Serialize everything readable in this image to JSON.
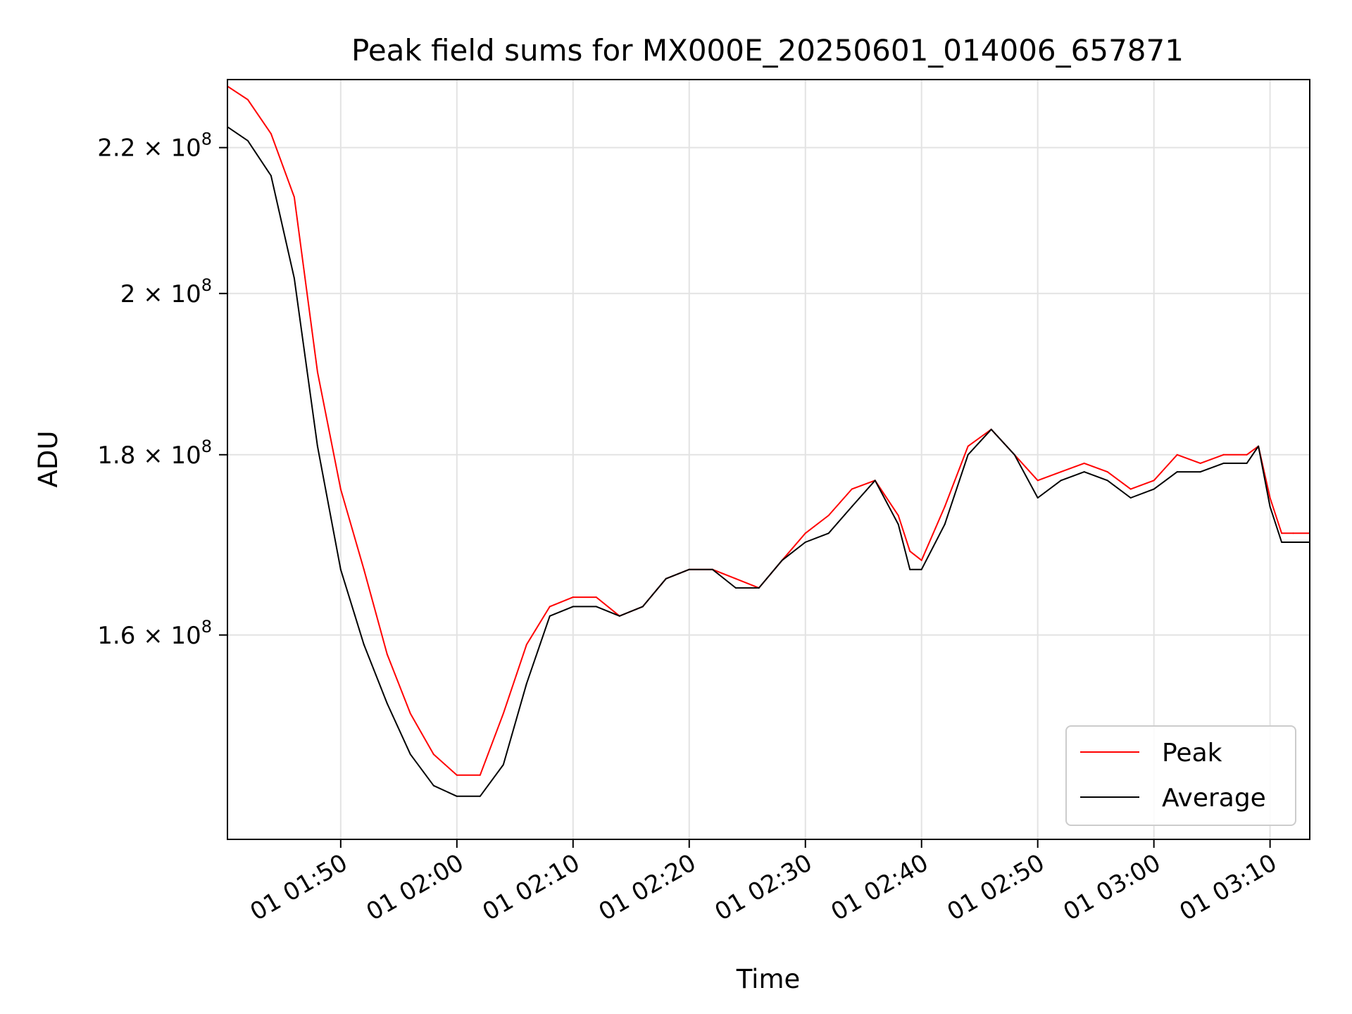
{
  "chart_data": {
    "type": "line",
    "title": "Peak field sums for MX000E_20250601_014006_657871",
    "xlabel": "Time",
    "ylabel": "ADU",
    "y_scale": "log",
    "xlim": [
      "2025-06-01 01:40:15",
      "2025-06-01 03:13:25"
    ],
    "ylim": [
      140000000,
      230000000
    ],
    "x_ticks": [
      "01 01:50",
      "01 02:00",
      "01 02:10",
      "01 02:20",
      "01 02:30",
      "01 02:40",
      "01 02:50",
      "01 03:00",
      "01 03:10"
    ],
    "x_tick_times": [
      "2025-06-01 01:50:00",
      "2025-06-01 02:00:00",
      "2025-06-01 02:10:00",
      "2025-06-01 02:20:00",
      "2025-06-01 02:30:00",
      "2025-06-01 02:40:00",
      "2025-06-01 02:50:00",
      "2025-06-01 03:00:00",
      "2025-06-01 03:10:00"
    ],
    "y_ticks": [
      {
        "value": 160000000,
        "mantissa": "1.6",
        "exponent": "8"
      },
      {
        "value": 180000000,
        "mantissa": "1.8",
        "exponent": "8"
      },
      {
        "value": 200000000,
        "mantissa": "2",
        "exponent": "8"
      },
      {
        "value": 220000000,
        "mantissa": "2.2",
        "exponent": "8"
      }
    ],
    "grid": true,
    "legend_position": "bottom-right",
    "colors": {
      "Peak": "#ff0000",
      "Average": "#000000"
    },
    "x": [
      "2025-06-01 01:40:15",
      "2025-06-01 01:42:00",
      "2025-06-01 01:44:00",
      "2025-06-01 01:46:00",
      "2025-06-01 01:48:00",
      "2025-06-01 01:50:00",
      "2025-06-01 01:52:00",
      "2025-06-01 01:54:00",
      "2025-06-01 01:56:00",
      "2025-06-01 01:58:00",
      "2025-06-01 02:00:00",
      "2025-06-01 02:02:00",
      "2025-06-01 02:04:00",
      "2025-06-01 02:06:00",
      "2025-06-01 02:08:00",
      "2025-06-01 02:10:00",
      "2025-06-01 02:12:00",
      "2025-06-01 02:14:00",
      "2025-06-01 02:16:00",
      "2025-06-01 02:18:00",
      "2025-06-01 02:20:00",
      "2025-06-01 02:22:00",
      "2025-06-01 02:24:00",
      "2025-06-01 02:26:00",
      "2025-06-01 02:28:00",
      "2025-06-01 02:30:00",
      "2025-06-01 02:32:00",
      "2025-06-01 02:34:00",
      "2025-06-01 02:36:00",
      "2025-06-01 02:38:00",
      "2025-06-01 02:39:00",
      "2025-06-01 02:40:00",
      "2025-06-01 02:42:00",
      "2025-06-01 02:44:00",
      "2025-06-01 02:46:00",
      "2025-06-01 02:48:00",
      "2025-06-01 02:50:00",
      "2025-06-01 02:52:00",
      "2025-06-01 02:54:00",
      "2025-06-01 02:56:00",
      "2025-06-01 02:58:00",
      "2025-06-01 03:00:00",
      "2025-06-01 03:02:00",
      "2025-06-01 03:04:00",
      "2025-06-01 03:06:00",
      "2025-06-01 03:08:00",
      "2025-06-01 03:09:00",
      "2025-06-01 03:10:00",
      "2025-06-01 03:11:00",
      "2025-06-01 03:12:00",
      "2025-06-01 03:13:25"
    ],
    "series": [
      {
        "name": "Peak",
        "values": [
          229000000,
          227000000,
          222000000,
          213000000,
          190000000,
          176000000,
          167000000,
          158000000,
          152000000,
          148000000,
          146000000,
          146000000,
          152000000,
          159000000,
          163000000,
          164000000,
          164000000,
          162000000,
          163000000,
          166000000,
          167000000,
          167000000,
          166000000,
          165000000,
          168000000,
          171000000,
          173000000,
          176000000,
          177000000,
          173000000,
          169000000,
          168000000,
          174000000,
          181000000,
          183000000,
          180000000,
          177000000,
          178000000,
          179000000,
          178000000,
          176000000,
          177000000,
          180000000,
          179000000,
          180000000,
          180000000,
          181000000,
          175000000,
          171000000,
          171000000,
          171000000
        ]
      },
      {
        "name": "Average",
        "values": [
          223000000,
          221000000,
          216000000,
          202000000,
          181000000,
          167000000,
          159000000,
          153000000,
          148000000,
          145000000,
          144000000,
          144000000,
          147000000,
          155000000,
          162000000,
          163000000,
          163000000,
          162000000,
          163000000,
          166000000,
          167000000,
          167000000,
          165000000,
          165000000,
          168000000,
          170000000,
          171000000,
          174000000,
          177000000,
          172000000,
          167000000,
          167000000,
          172000000,
          180000000,
          183000000,
          180000000,
          175000000,
          177000000,
          178000000,
          177000000,
          175000000,
          176000000,
          178000000,
          178000000,
          179000000,
          179000000,
          181000000,
          174000000,
          170000000,
          170000000,
          170000000
        ]
      }
    ]
  }
}
